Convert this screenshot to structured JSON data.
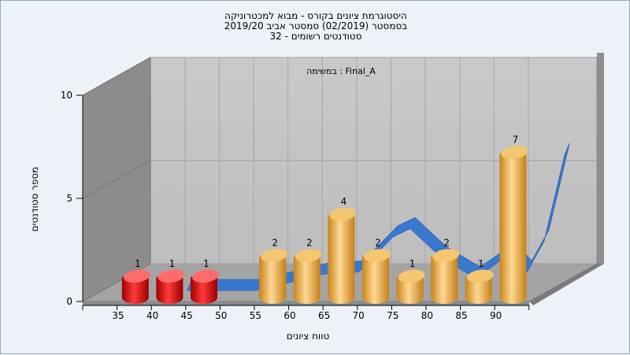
{
  "chart_data": {
    "type": "bar",
    "title_lines": [
      "היסטוגרמת ציונים בקורס - מבוא למכטרוניקה",
      "בסמסטר  (02/2019)  סמסטר אביב 2019/20",
      "סטודנטים רשומים - 32"
    ],
    "annotation": "במשימה : Final_A",
    "xlabel": "טווח ציונים",
    "ylabel": "מספר סטודנטים",
    "x_ticks": [
      35,
      40,
      45,
      50,
      55,
      60,
      65,
      70,
      75,
      80,
      85,
      90
    ],
    "y_ticks": [
      0,
      5,
      10
    ],
    "ylim": [
      0,
      10
    ],
    "bars": [
      {
        "bin": 35,
        "value": 1,
        "color": "#d81818"
      },
      {
        "bin": 40,
        "value": 1,
        "color": "#d81818"
      },
      {
        "bin": 45,
        "value": 1,
        "color": "#d81818"
      },
      {
        "bin": 55,
        "value": 2,
        "color": "#e8a43c"
      },
      {
        "bin": 60,
        "value": 2,
        "color": "#e8a43c"
      },
      {
        "bin": 65,
        "value": 4,
        "color": "#e8a43c"
      },
      {
        "bin": 70,
        "value": 2,
        "color": "#e8a43c"
      },
      {
        "bin": 75,
        "value": 1,
        "color": "#e8a43c"
      },
      {
        "bin": 80,
        "value": 2,
        "color": "#e8a43c"
      },
      {
        "bin": 85,
        "value": 1,
        "color": "#e8a43c"
      },
      {
        "bin": 90,
        "value": 7,
        "color": "#e8a43c"
      }
    ],
    "curve_color": "#3a78d0",
    "grid": true,
    "legend": "none"
  }
}
